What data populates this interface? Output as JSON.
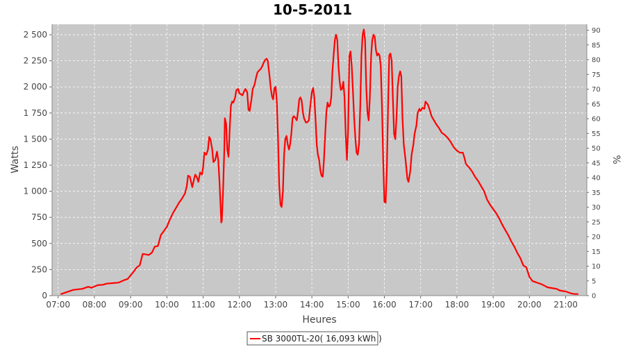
{
  "chart_data": {
    "type": "line",
    "title": "10-5-2011",
    "xlabel": "Heures",
    "ylabel": "Watts",
    "y2label": "%",
    "x_ticks": [
      "07:00",
      "08:00",
      "09:00",
      "10:00",
      "11:00",
      "12:00",
      "13:00",
      "14:00",
      "15:00",
      "16:00",
      "17:00",
      "18:00",
      "19:00",
      "20:00",
      "21:00"
    ],
    "y_ticks": [
      "0",
      "250",
      "500",
      "750",
      "1 000",
      "1 250",
      "1 500",
      "1 750",
      "2 000",
      "2 250",
      "2 500"
    ],
    "y2_ticks": [
      "0",
      "5",
      "10",
      "15",
      "20",
      "25",
      "30",
      "35",
      "40",
      "45",
      "50",
      "55",
      "60",
      "65",
      "70",
      "75",
      "80",
      "85",
      "90"
    ],
    "xlim": [
      "06:50",
      "21:35"
    ],
    "ylim": [
      0,
      2600
    ],
    "y2lim": [
      0,
      92
    ],
    "grid": true,
    "background_color": "#c8c8c8",
    "legend_position": "bottom-center",
    "series": [
      {
        "name": "SB 3000TL-20( 16,093 kWh  )",
        "color": "#ff0000",
        "points": [
          [
            "07:05",
            15
          ],
          [
            "07:15",
            35
          ],
          [
            "07:25",
            55
          ],
          [
            "07:40",
            65
          ],
          [
            "07:50",
            85
          ],
          [
            "07:55",
            75
          ],
          [
            "08:05",
            100
          ],
          [
            "08:15",
            105
          ],
          [
            "08:20",
            115
          ],
          [
            "08:30",
            120
          ],
          [
            "08:40",
            125
          ],
          [
            "08:50",
            150
          ],
          [
            "08:55",
            160
          ],
          [
            "09:05",
            230
          ],
          [
            "09:10",
            270
          ],
          [
            "09:15",
            290
          ],
          [
            "09:20",
            400
          ],
          [
            "09:25",
            395
          ],
          [
            "09:30",
            390
          ],
          [
            "09:35",
            410
          ],
          [
            "09:40",
            470
          ],
          [
            "09:45",
            475
          ],
          [
            "09:50",
            580
          ],
          [
            "09:55",
            620
          ],
          [
            "10:00",
            660
          ],
          [
            "10:05",
            730
          ],
          [
            "10:10",
            790
          ],
          [
            "10:15",
            840
          ],
          [
            "10:20",
            890
          ],
          [
            "10:25",
            930
          ],
          [
            "10:30",
            980
          ],
          [
            "10:33",
            1050
          ],
          [
            "10:35",
            1150
          ],
          [
            "10:38",
            1140
          ],
          [
            "10:40",
            1090
          ],
          [
            "10:42",
            1040
          ],
          [
            "10:45",
            1120
          ],
          [
            "10:47",
            1160
          ],
          [
            "10:50",
            1130
          ],
          [
            "10:52",
            1090
          ],
          [
            "10:55",
            1180
          ],
          [
            "10:58",
            1160
          ],
          [
            "11:00",
            1230
          ],
          [
            "11:02",
            1370
          ],
          [
            "11:05",
            1350
          ],
          [
            "11:08",
            1400
          ],
          [
            "11:10",
            1520
          ],
          [
            "11:12",
            1500
          ],
          [
            "11:15",
            1400
          ],
          [
            "11:17",
            1280
          ],
          [
            "11:20",
            1300
          ],
          [
            "11:23",
            1380
          ],
          [
            "11:25",
            1300
          ],
          [
            "11:27",
            1100
          ],
          [
            "11:29",
            850
          ],
          [
            "11:30",
            700
          ],
          [
            "11:31",
            720
          ],
          [
            "11:33",
            1000
          ],
          [
            "11:35",
            1400
          ],
          [
            "11:36",
            1700
          ],
          [
            "11:38",
            1650
          ],
          [
            "11:40",
            1400
          ],
          [
            "11:42",
            1330
          ],
          [
            "11:44",
            1600
          ],
          [
            "11:46",
            1820
          ],
          [
            "11:48",
            1860
          ],
          [
            "11:50",
            1850
          ],
          [
            "11:53",
            1900
          ],
          [
            "11:55",
            1970
          ],
          [
            "11:58",
            1980
          ],
          [
            "12:00",
            1940
          ],
          [
            "12:05",
            1920
          ],
          [
            "12:08",
            1960
          ],
          [
            "12:10",
            1980
          ],
          [
            "12:13",
            1950
          ],
          [
            "12:15",
            1780
          ],
          [
            "12:17",
            1770
          ],
          [
            "12:20",
            1880
          ],
          [
            "12:22",
            1980
          ],
          [
            "12:25",
            2020
          ],
          [
            "12:28",
            2100
          ],
          [
            "12:30",
            2140
          ],
          [
            "12:33",
            2160
          ],
          [
            "12:35",
            2170
          ],
          [
            "12:38",
            2200
          ],
          [
            "12:40",
            2230
          ],
          [
            "12:43",
            2260
          ],
          [
            "12:45",
            2270
          ],
          [
            "12:47",
            2250
          ],
          [
            "12:50",
            2100
          ],
          [
            "12:52",
            1980
          ],
          [
            "12:54",
            1910
          ],
          [
            "12:56",
            1880
          ],
          [
            "12:58",
            1990
          ],
          [
            "13:00",
            2000
          ],
          [
            "13:02",
            1850
          ],
          [
            "13:04",
            1500
          ],
          [
            "13:06",
            1050
          ],
          [
            "13:08",
            870
          ],
          [
            "13:10",
            850
          ],
          [
            "13:12",
            1000
          ],
          [
            "13:14",
            1350
          ],
          [
            "13:16",
            1500
          ],
          [
            "13:18",
            1530
          ],
          [
            "13:20",
            1450
          ],
          [
            "13:22",
            1400
          ],
          [
            "13:24",
            1450
          ],
          [
            "13:26",
            1550
          ],
          [
            "13:28",
            1700
          ],
          [
            "13:30",
            1720
          ],
          [
            "13:33",
            1700
          ],
          [
            "13:35",
            1680
          ],
          [
            "13:37",
            1760
          ],
          [
            "13:39",
            1880
          ],
          [
            "13:41",
            1900
          ],
          [
            "13:43",
            1870
          ],
          [
            "13:45",
            1760
          ],
          [
            "13:47",
            1700
          ],
          [
            "13:50",
            1660
          ],
          [
            "13:52",
            1660
          ],
          [
            "13:55",
            1680
          ],
          [
            "13:57",
            1800
          ],
          [
            "14:00",
            1950
          ],
          [
            "14:02",
            1990
          ],
          [
            "14:04",
            1900
          ],
          [
            "14:06",
            1700
          ],
          [
            "14:08",
            1450
          ],
          [
            "14:10",
            1350
          ],
          [
            "14:12",
            1300
          ],
          [
            "14:14",
            1200
          ],
          [
            "14:16",
            1150
          ],
          [
            "14:18",
            1140
          ],
          [
            "14:20",
            1300
          ],
          [
            "14:22",
            1550
          ],
          [
            "14:24",
            1760
          ],
          [
            "14:26",
            1850
          ],
          [
            "14:28",
            1810
          ],
          [
            "14:30",
            1820
          ],
          [
            "14:32",
            1900
          ],
          [
            "14:34",
            2150
          ],
          [
            "14:36",
            2300
          ],
          [
            "14:38",
            2450
          ],
          [
            "14:40",
            2500
          ],
          [
            "14:42",
            2450
          ],
          [
            "14:44",
            2200
          ],
          [
            "14:46",
            2050
          ],
          [
            "14:48",
            1970
          ],
          [
            "14:50",
            1980
          ],
          [
            "14:52",
            2050
          ],
          [
            "14:54",
            1900
          ],
          [
            "14:56",
            1550
          ],
          [
            "14:58",
            1300
          ],
          [
            "15:00",
            1600
          ],
          [
            "15:02",
            2300
          ],
          [
            "15:04",
            2340
          ],
          [
            "15:06",
            2200
          ],
          [
            "15:08",
            1950
          ],
          [
            "15:10",
            1700
          ],
          [
            "15:12",
            1500
          ],
          [
            "15:14",
            1370
          ],
          [
            "15:16",
            1350
          ],
          [
            "15:18",
            1450
          ],
          [
            "15:20",
            1800
          ],
          [
            "15:22",
            2300
          ],
          [
            "15:24",
            2500
          ],
          [
            "15:26",
            2550
          ],
          [
            "15:28",
            2450
          ],
          [
            "15:30",
            2000
          ],
          [
            "15:32",
            1750
          ],
          [
            "15:34",
            1680
          ],
          [
            "15:36",
            1900
          ],
          [
            "15:38",
            2300
          ],
          [
            "15:40",
            2450
          ],
          [
            "15:42",
            2500
          ],
          [
            "15:44",
            2480
          ],
          [
            "15:46",
            2350
          ],
          [
            "15:48",
            2300
          ],
          [
            "15:50",
            2320
          ],
          [
            "15:52",
            2300
          ],
          [
            "15:54",
            2200
          ],
          [
            "15:56",
            1800
          ],
          [
            "15:58",
            1300
          ],
          [
            "16:00",
            900
          ],
          [
            "16:02",
            890
          ],
          [
            "16:04",
            1200
          ],
          [
            "16:06",
            1800
          ],
          [
            "16:08",
            2300
          ],
          [
            "16:10",
            2320
          ],
          [
            "16:12",
            2250
          ],
          [
            "16:14",
            1900
          ],
          [
            "16:16",
            1550
          ],
          [
            "16:18",
            1500
          ],
          [
            "16:20",
            1700
          ],
          [
            "16:22",
            2000
          ],
          [
            "16:24",
            2100
          ],
          [
            "16:26",
            2150
          ],
          [
            "16:28",
            2100
          ],
          [
            "16:30",
            1700
          ],
          [
            "16:32",
            1450
          ],
          [
            "16:35",
            1300
          ],
          [
            "16:38",
            1120
          ],
          [
            "16:40",
            1090
          ],
          [
            "16:43",
            1200
          ],
          [
            "16:45",
            1350
          ],
          [
            "16:48",
            1450
          ],
          [
            "16:50",
            1550
          ],
          [
            "16:53",
            1630
          ],
          [
            "16:55",
            1750
          ],
          [
            "16:58",
            1790
          ],
          [
            "17:00",
            1770
          ],
          [
            "17:03",
            1800
          ],
          [
            "17:06",
            1790
          ],
          [
            "17:08",
            1860
          ],
          [
            "17:12",
            1830
          ],
          [
            "17:15",
            1780
          ],
          [
            "17:18",
            1720
          ],
          [
            "17:22",
            1680
          ],
          [
            "17:26",
            1640
          ],
          [
            "17:30",
            1610
          ],
          [
            "17:35",
            1560
          ],
          [
            "17:40",
            1540
          ],
          [
            "17:45",
            1510
          ],
          [
            "17:50",
            1470
          ],
          [
            "17:55",
            1420
          ],
          [
            "18:00",
            1390
          ],
          [
            "18:05",
            1370
          ],
          [
            "18:10",
            1370
          ],
          [
            "18:13",
            1310
          ],
          [
            "18:15",
            1260
          ],
          [
            "18:20",
            1230
          ],
          [
            "18:25",
            1190
          ],
          [
            "18:30",
            1140
          ],
          [
            "18:35",
            1100
          ],
          [
            "18:40",
            1050
          ],
          [
            "18:45",
            1000
          ],
          [
            "18:50",
            920
          ],
          [
            "18:55",
            870
          ],
          [
            "19:00",
            830
          ],
          [
            "19:05",
            790
          ],
          [
            "19:10",
            740
          ],
          [
            "19:15",
            680
          ],
          [
            "19:20",
            630
          ],
          [
            "19:25",
            580
          ],
          [
            "19:30",
            520
          ],
          [
            "19:35",
            470
          ],
          [
            "19:40",
            410
          ],
          [
            "19:45",
            360
          ],
          [
            "19:50",
            290
          ],
          [
            "19:55",
            270
          ],
          [
            "20:00",
            180
          ],
          [
            "20:05",
            140
          ],
          [
            "20:10",
            130
          ],
          [
            "20:15",
            120
          ],
          [
            "20:20",
            110
          ],
          [
            "20:25",
            95
          ],
          [
            "20:30",
            80
          ],
          [
            "20:40",
            70
          ],
          [
            "20:45",
            65
          ],
          [
            "20:50",
            50
          ],
          [
            "21:00",
            40
          ],
          [
            "21:05",
            30
          ],
          [
            "21:10",
            20
          ],
          [
            "21:15",
            15
          ],
          [
            "21:20",
            15
          ]
        ]
      }
    ]
  }
}
